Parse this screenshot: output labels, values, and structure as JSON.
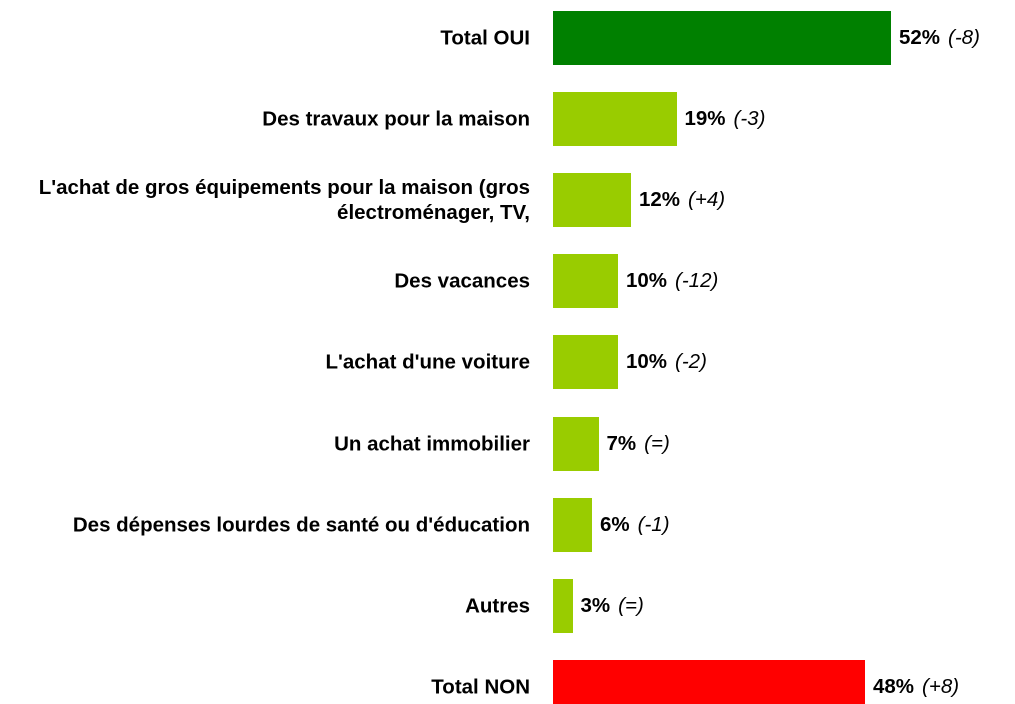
{
  "chart_data": {
    "type": "bar",
    "orientation": "horizontal",
    "categories": [
      "Total OUI",
      "Des travaux pour la maison",
      "L'achat de gros équipements pour la maison (gros électroménager, TV,",
      "Des vacances",
      "L'achat d'une voiture",
      "Un achat immobilier",
      "Des dépenses lourdes de santé ou d'éducation",
      "Autres",
      "Total NON"
    ],
    "values": [
      52,
      19,
      12,
      10,
      10,
      7,
      6,
      3,
      48
    ],
    "value_labels": [
      "52%",
      "19%",
      "12%",
      "10%",
      "10%",
      "7%",
      "6%",
      "3%",
      "48%"
    ],
    "changes": [
      "(-8)",
      "(-3)",
      "(+4)",
      "(-12)",
      "(-2)",
      "(=)",
      "(-1)",
      "(=)",
      "(+8)"
    ],
    "colors": [
      "#008000",
      "#99cc00",
      "#99cc00",
      "#99cc00",
      "#99cc00",
      "#99cc00",
      "#99cc00",
      "#99cc00",
      "#ff0000"
    ]
  }
}
